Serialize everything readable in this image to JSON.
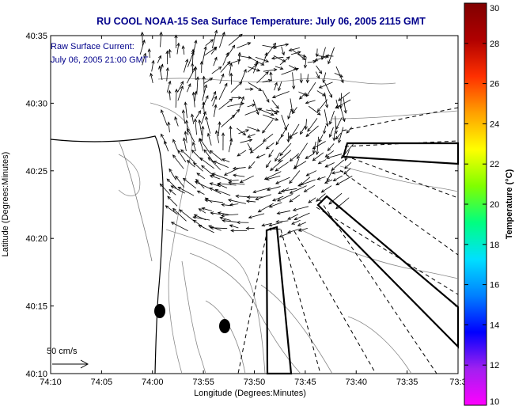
{
  "title": "RU COOL  NOAA-15  Sea Surface Temperature:  July 06, 2005 2115 GMT",
  "annotation": {
    "line1": "Raw Surface Current:",
    "line2": "July 06, 2005 21:00 GMT"
  },
  "scale_label": "50 cm/s",
  "axes": {
    "xlabel": "Longitude (Degrees:Minutes)",
    "ylabel": "Latitude (Degrees:Minutes)",
    "x_ticks": [
      "74:10",
      "74:05",
      "74:00",
      "73:55",
      "73:50",
      "73:45",
      "73:40",
      "73:35",
      "73:3"
    ],
    "y_ticks": [
      "40:35",
      "40:30",
      "40:25",
      "40:20",
      "40:15",
      "40:10"
    ]
  },
  "colorbar": {
    "label": "Temperature (°C)",
    "ticks": [
      "30",
      "28",
      "26",
      "24",
      "22",
      "20",
      "18",
      "16",
      "14",
      "12",
      "10"
    ],
    "colors": [
      "#ff00ff",
      "#a020f0",
      "#0000ff",
      "#0080ff",
      "#00e0ff",
      "#00ff80",
      "#80ff00",
      "#ffff00",
      "#ffa000",
      "#ff3000",
      "#b00000",
      "#800000"
    ]
  }
}
